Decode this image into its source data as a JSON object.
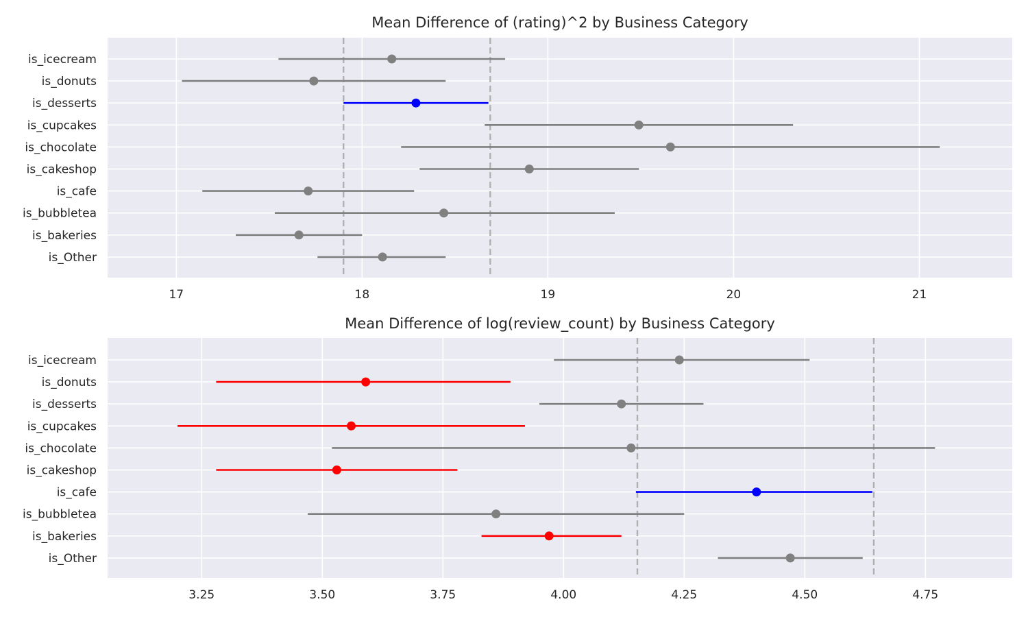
{
  "colors": {
    "default": "#808080",
    "highlight": "#0000ff",
    "significant": "#ff0000",
    "background": "#eaeaf2",
    "grid": "#ffffff",
    "reference": "#b0b0b0"
  },
  "chart_data": [
    {
      "type": "errorbar",
      "title": "Mean Difference of (rating)^2 by Business Category",
      "xlabel": "",
      "ylabel": "",
      "xlim": [
        16.63,
        21.5
      ],
      "xticks": [
        17,
        18,
        19,
        20,
        21
      ],
      "xtick_labels": [
        "17",
        "18",
        "19",
        "20",
        "21"
      ],
      "grid": true,
      "reference_lines": [
        17.9,
        18.69
      ],
      "categories": [
        "is_icecream",
        "is_donuts",
        "is_desserts",
        "is_cupcakes",
        "is_chocolate",
        "is_cakeshop",
        "is_cafe",
        "is_bubbletea",
        "is_bakeries",
        "is_Other"
      ],
      "points": [
        {
          "category": "is_icecream",
          "mean": 18.16,
          "low": 17.55,
          "high": 18.77,
          "color": "gray"
        },
        {
          "category": "is_donuts",
          "mean": 17.74,
          "low": 17.03,
          "high": 18.45,
          "color": "gray"
        },
        {
          "category": "is_desserts",
          "mean": 18.29,
          "low": 17.9,
          "high": 18.68,
          "color": "blue"
        },
        {
          "category": "is_cupcakes",
          "mean": 19.49,
          "low": 18.66,
          "high": 20.32,
          "color": "gray"
        },
        {
          "category": "is_chocolate",
          "mean": 19.66,
          "low": 18.21,
          "high": 21.11,
          "color": "gray"
        },
        {
          "category": "is_cakeshop",
          "mean": 18.9,
          "low": 18.31,
          "high": 19.49,
          "color": "gray"
        },
        {
          "category": "is_cafe",
          "mean": 17.71,
          "low": 17.14,
          "high": 18.28,
          "color": "gray"
        },
        {
          "category": "is_bubbletea",
          "mean": 18.44,
          "low": 17.53,
          "high": 19.36,
          "color": "gray"
        },
        {
          "category": "is_bakeries",
          "mean": 17.66,
          "low": 17.32,
          "high": 18.0,
          "color": "gray"
        },
        {
          "category": "is_Other",
          "mean": 18.11,
          "low": 17.76,
          "high": 18.45,
          "color": "gray"
        }
      ]
    },
    {
      "type": "errorbar",
      "title": "Mean Difference of log(review_count) by Business Category",
      "xlabel": "",
      "ylabel": "",
      "xlim": [
        3.055,
        4.93
      ],
      "xticks": [
        3.25,
        3.5,
        3.75,
        4.0,
        4.25,
        4.5,
        4.75
      ],
      "xtick_labels": [
        "3.25",
        "3.50",
        "3.75",
        "4.00",
        "4.25",
        "4.50",
        "4.75"
      ],
      "grid": true,
      "reference_lines": [
        4.153,
        4.643
      ],
      "categories": [
        "is_icecream",
        "is_donuts",
        "is_desserts",
        "is_cupcakes",
        "is_chocolate",
        "is_cakeshop",
        "is_cafe",
        "is_bubbletea",
        "is_bakeries",
        "is_Other"
      ],
      "points": [
        {
          "category": "is_icecream",
          "mean": 4.24,
          "low": 3.98,
          "high": 4.51,
          "color": "gray"
        },
        {
          "category": "is_donuts",
          "mean": 3.59,
          "low": 3.28,
          "high": 3.89,
          "color": "red"
        },
        {
          "category": "is_desserts",
          "mean": 4.12,
          "low": 3.95,
          "high": 4.29,
          "color": "gray"
        },
        {
          "category": "is_cupcakes",
          "mean": 3.56,
          "low": 3.2,
          "high": 3.92,
          "color": "red"
        },
        {
          "category": "is_chocolate",
          "mean": 4.14,
          "low": 3.52,
          "high": 4.77,
          "color": "gray"
        },
        {
          "category": "is_cakeshop",
          "mean": 3.53,
          "low": 3.28,
          "high": 3.78,
          "color": "red"
        },
        {
          "category": "is_cafe",
          "mean": 4.4,
          "low": 4.15,
          "high": 4.64,
          "color": "blue"
        },
        {
          "category": "is_bubbletea",
          "mean": 3.86,
          "low": 3.47,
          "high": 4.25,
          "color": "gray"
        },
        {
          "category": "is_bakeries",
          "mean": 3.97,
          "low": 3.83,
          "high": 4.12,
          "color": "red"
        },
        {
          "category": "is_Other",
          "mean": 4.47,
          "low": 4.32,
          "high": 4.62,
          "color": "gray"
        }
      ]
    }
  ]
}
